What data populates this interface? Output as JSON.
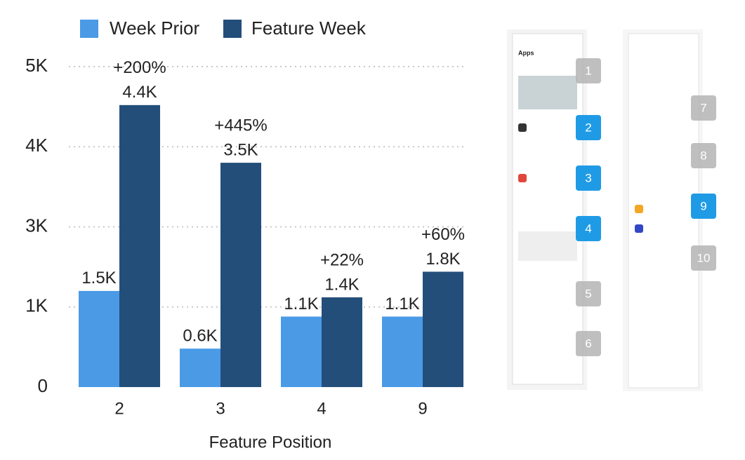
{
  "chart_data": {
    "type": "bar",
    "categories": [
      "2",
      "3",
      "4",
      "9"
    ],
    "series": [
      {
        "name": "Week Prior",
        "color": "#4a9ae6",
        "values": [
          1500,
          600,
          1100,
          1100
        ],
        "value_labels": [
          "1.5K",
          "0.6K",
          "1.1K",
          "1.1K"
        ]
      },
      {
        "name": "Feature Week",
        "color": "#234e7a",
        "values": [
          4400,
          3500,
          1400,
          1800
        ],
        "value_labels": [
          "4.4K",
          "3.5K",
          "1.4K",
          "1.8K"
        ]
      }
    ],
    "annotations": [
      "+200%",
      "+445%",
      "+22%",
      "+60%"
    ],
    "x_label": "Feature Position",
    "ylim": [
      0,
      5000
    ],
    "yticks": [
      0,
      {
        "value": 1250,
        "label": "1K"
      },
      {
        "value": 2500,
        "label": "3K"
      },
      {
        "value": 3750,
        "label": "4K"
      },
      {
        "value": 5000,
        "label": "5K"
      }
    ],
    "grid": true,
    "legend": "top"
  },
  "side_panel": {
    "title": "Apps",
    "badges": [
      "1",
      "2",
      "3",
      "4",
      "5",
      "6",
      "7",
      "8",
      "9",
      "10"
    ],
    "highlighted": [
      false,
      true,
      true,
      true,
      false,
      false,
      false,
      false,
      true,
      false
    ]
  }
}
